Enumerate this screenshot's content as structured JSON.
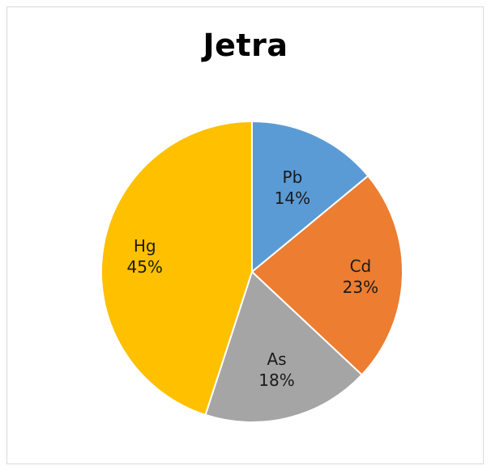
{
  "chart_data": {
    "type": "pie",
    "title": "Jetra",
    "slices": [
      {
        "label": "Pb",
        "value": 14,
        "value_label": "14%",
        "color": "#5b9bd5"
      },
      {
        "label": "Cd",
        "value": 23,
        "value_label": "23%",
        "color": "#ed7d31"
      },
      {
        "label": "As",
        "value": 18,
        "value_label": "18%",
        "color": "#a5a5a5"
      },
      {
        "label": "Hg",
        "value": 45,
        "value_label": "45%",
        "color": "#ffc000"
      }
    ],
    "start_angle": "12 o'clock",
    "direction": "clockwise",
    "legend": "none",
    "data_labels": "inside"
  }
}
